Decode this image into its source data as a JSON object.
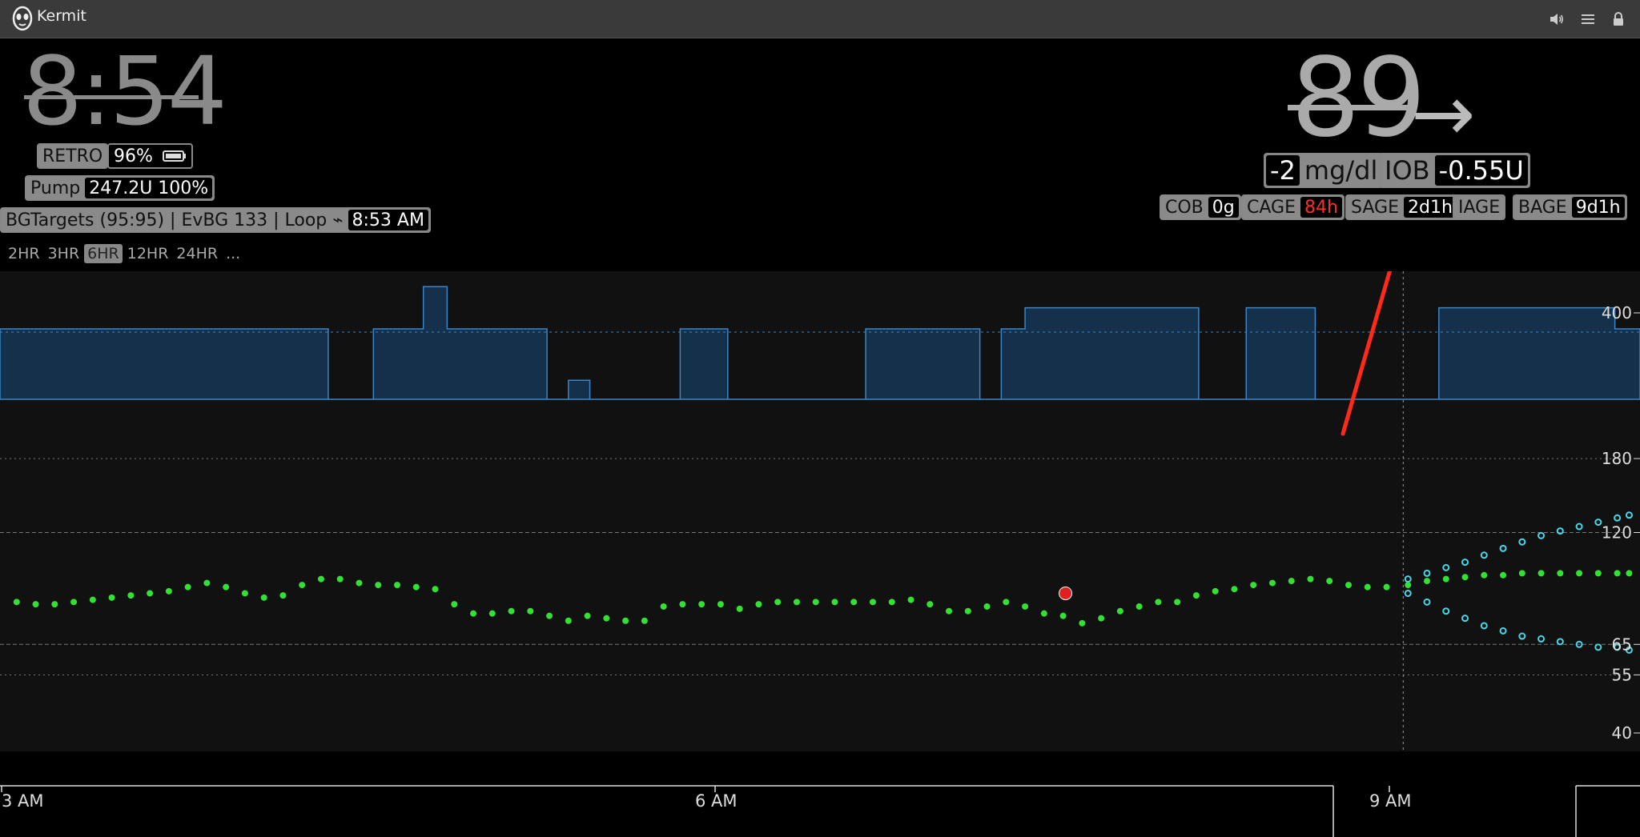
{
  "window": {
    "title": "Kermit"
  },
  "titlebar_icons": [
    "speaker-icon",
    "menu-icon",
    "lock-icon"
  ],
  "header": {
    "clock": "8:54",
    "retro_label": "RETRO",
    "battery_pct": "96%",
    "pump_label": "Pump",
    "pump_value": "247.2U 100%",
    "loop_text": "BGTargets (95:95) | EvBG 133 | Loop ⌁",
    "loop_time": "8:53 AM",
    "bg_value": "89",
    "bg_direction": "→",
    "delta_value": "-2",
    "delta_unit": "mg/dl",
    "iob_label": "IOB",
    "iob_value": "-0.55U",
    "pills": [
      {
        "label": "COB",
        "value": "0g",
        "value_color": "#ffffff"
      },
      {
        "label": "CAGE",
        "value": "84h",
        "value_color": "#ff2a2a"
      },
      {
        "label": "SAGE",
        "value": "2d1h",
        "value_color": "#ffffff"
      },
      {
        "label": "IAGE",
        "value": "",
        "value_color": "#ffffff"
      },
      {
        "label": "BAGE",
        "value": "9d1h",
        "value_color": "#ffffff"
      }
    ],
    "ranges": [
      "2HR",
      "3HR",
      "6HR",
      "12HR",
      "24HR",
      "..."
    ],
    "active_range": "6HR"
  },
  "colors": {
    "bg_point": "#33e033",
    "mbg_point": "#e02020",
    "prediction": "#46d8e8",
    "basal_fill": "#14304a",
    "basal_line": "#3a86c8",
    "annotation": "#ff2a1a"
  },
  "chart_data": {
    "type": "scatter",
    "title": "",
    "y_scale": "log",
    "y_ticks": [
      400,
      180,
      120,
      65,
      55,
      40
    ],
    "x_ticks": [
      "3 AM",
      "6 AM",
      "9 AM"
    ],
    "x_range_hours": [
      3.0,
      9.85
    ],
    "now_hour": 8.9,
    "series": [
      {
        "kind": "sgv",
        "x_hours": [
          3.07,
          3.15,
          3.23,
          3.31,
          3.39,
          3.47,
          3.55,
          3.63,
          3.71,
          3.79,
          3.87,
          3.95,
          4.03,
          4.11,
          4.19,
          4.27,
          4.35,
          4.43,
          4.51,
          4.59,
          4.67,
          4.75,
          4.83,
          4.91,
          4.99,
          5.07,
          5.15,
          5.23,
          5.31,
          5.39,
          5.47,
          5.55,
          5.63,
          5.71,
          5.79,
          5.87,
          5.95,
          6.03,
          6.11,
          6.19,
          6.27,
          6.35,
          6.43,
          6.51,
          6.59,
          6.67,
          6.75,
          6.83,
          6.91,
          6.99,
          7.07,
          7.15,
          7.23,
          7.31,
          7.39,
          7.47,
          7.55,
          7.63,
          7.71,
          7.79,
          7.87,
          7.95,
          8.03,
          8.11,
          8.19,
          8.27,
          8.35,
          8.43,
          8.51,
          8.59,
          8.67,
          8.75,
          8.83
        ],
        "y_values": [
          82,
          81,
          81,
          82,
          83,
          84,
          85,
          86,
          87,
          89,
          91,
          89,
          86,
          84,
          85,
          90,
          93,
          93,
          91,
          90,
          90,
          89,
          88,
          81,
          77,
          77,
          78,
          78,
          76,
          74,
          76,
          75,
          74,
          74,
          80,
          81,
          81,
          81,
          79,
          81,
          82,
          82,
          82,
          82,
          82,
          82,
          82,
          83,
          81,
          78,
          78,
          80,
          82,
          80,
          77,
          76,
          73,
          75,
          78,
          80,
          82,
          82,
          85,
          87,
          88,
          90,
          91,
          92,
          93,
          92,
          90,
          89,
          89
        ]
      },
      {
        "kind": "mbg",
        "x_hours": [
          7.48
        ],
        "y_values": [
          86
        ]
      },
      {
        "kind": "prediction-high",
        "x_hours": [
          8.92,
          9.0,
          9.08,
          9.16,
          9.24,
          9.32,
          9.4,
          9.48,
          9.56,
          9.64,
          9.72,
          9.8,
          9.85
        ],
        "y_values": [
          93,
          96,
          99,
          102,
          106,
          110,
          114,
          118,
          121,
          124,
          127,
          130,
          132
        ]
      },
      {
        "kind": "prediction-mid",
        "x_hours": [
          8.92,
          9.0,
          9.08,
          9.16,
          9.24,
          9.32,
          9.4,
          9.48,
          9.56,
          9.64,
          9.72,
          9.8,
          9.85
        ],
        "y_values": [
          90,
          92,
          93,
          94,
          95,
          95,
          96,
          96,
          96,
          96,
          96,
          96,
          96
        ]
      },
      {
        "kind": "prediction-low",
        "x_hours": [
          8.92,
          9.0,
          9.08,
          9.16,
          9.24,
          9.32,
          9.4,
          9.48,
          9.56,
          9.64,
          9.72,
          9.8,
          9.85
        ],
        "y_values": [
          86,
          82,
          78,
          75,
          72,
          70,
          68,
          67,
          66,
          65,
          64,
          64,
          63
        ]
      }
    ],
    "basal": [
      {
        "start": 3.0,
        "end": 4.38,
        "level": 1.0
      },
      {
        "start": 4.38,
        "end": 4.57,
        "level": 0.0
      },
      {
        "start": 4.57,
        "end": 4.78,
        "level": 1.0
      },
      {
        "start": 4.78,
        "end": 4.88,
        "level": 1.6
      },
      {
        "start": 4.88,
        "end": 5.3,
        "level": 1.0
      },
      {
        "start": 5.3,
        "end": 5.39,
        "level": 0.0
      },
      {
        "start": 5.39,
        "end": 5.48,
        "level": 0.27
      },
      {
        "start": 5.48,
        "end": 5.86,
        "level": 0.0
      },
      {
        "start": 5.86,
        "end": 6.06,
        "level": 1.0
      },
      {
        "start": 6.06,
        "end": 6.64,
        "level": 0.0
      },
      {
        "start": 6.64,
        "end": 7.12,
        "level": 1.0
      },
      {
        "start": 7.12,
        "end": 7.21,
        "level": 0.0
      },
      {
        "start": 7.21,
        "end": 7.31,
        "level": 1.0
      },
      {
        "start": 7.31,
        "end": 8.04,
        "level": 1.3
      },
      {
        "start": 8.04,
        "end": 8.24,
        "level": 0.0
      },
      {
        "start": 8.24,
        "end": 8.53,
        "level": 1.3
      },
      {
        "start": 8.53,
        "end": 9.05,
        "level": 0.0
      },
      {
        "start": 9.05,
        "end": 9.79,
        "level": 1.3
      },
      {
        "start": 9.79,
        "end": 10.15,
        "level": 1.0
      }
    ]
  }
}
